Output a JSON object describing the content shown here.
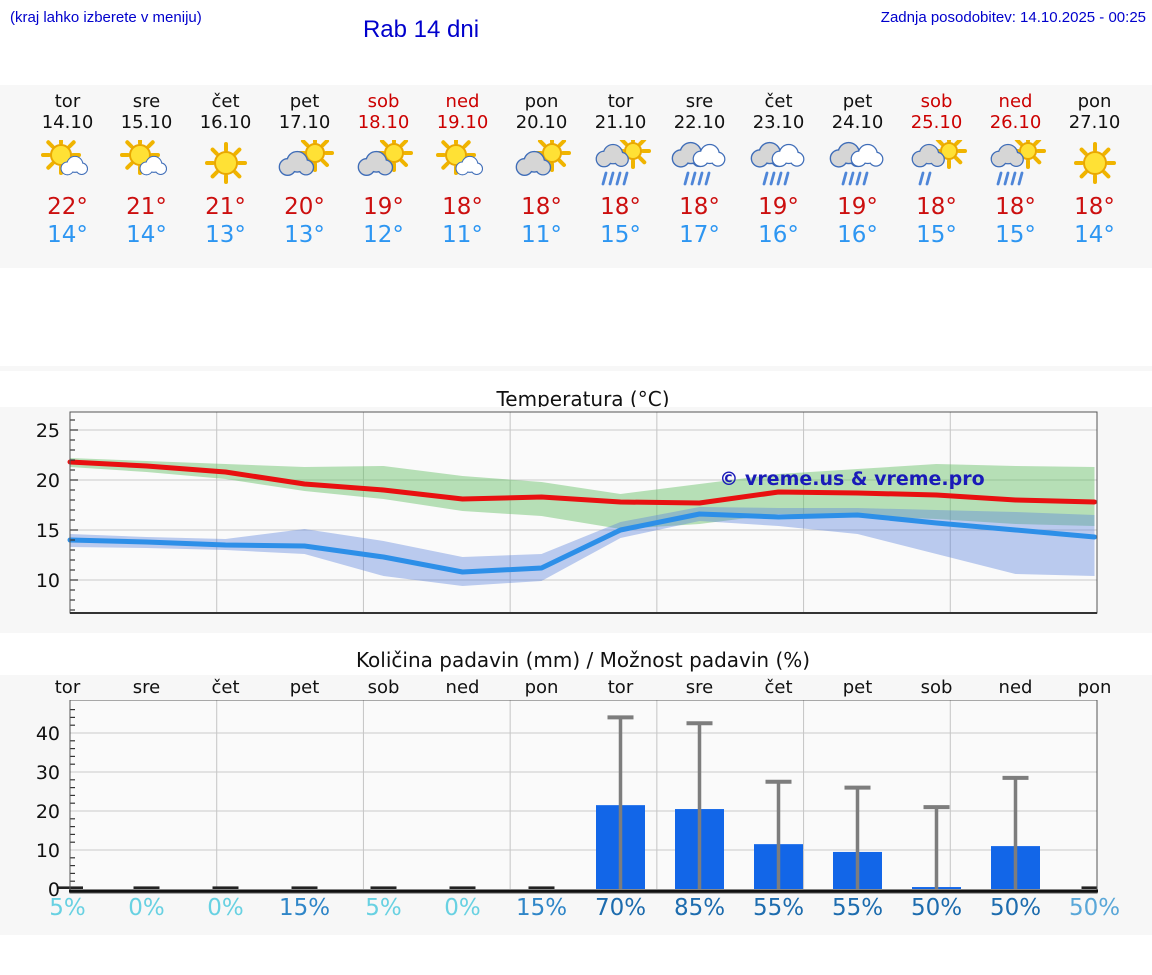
{
  "header": {
    "hint": "(kraj lahko izberete v meniju)",
    "title": "Rab 14 dni",
    "updated": "Zadnja posodobitev: 14.10.2025 - 00:25"
  },
  "watermark": "© vreme.us & vreme.pro",
  "colors": {
    "header_text": "#0000cc",
    "weekend_red": "#cc0000",
    "high_temp": "#cc0f0f",
    "low_temp": "#2d96f2",
    "max_line": "#e81010",
    "min_line": "#2d8fe8",
    "max_band": "rgba(100,190,100,0.45)",
    "min_band": "rgba(90,130,220,0.40)",
    "bar": "#1266e8",
    "whisker": "#7d7d7d",
    "band_bg": "#f7f7f7",
    "plot_bg": "#fafafa"
  },
  "forecast_days": [
    {
      "name": "tor",
      "date": "14.10",
      "weekend": false,
      "icon": "sun-cloud-white",
      "high": "22°",
      "low": "14°"
    },
    {
      "name": "sre",
      "date": "15.10",
      "weekend": false,
      "icon": "sun-cloud-white",
      "high": "21°",
      "low": "14°"
    },
    {
      "name": "čet",
      "date": "16.10",
      "weekend": false,
      "icon": "sun",
      "high": "21°",
      "low": "13°"
    },
    {
      "name": "pet",
      "date": "17.10",
      "weekend": false,
      "icon": "sun-cloud-gray",
      "high": "20°",
      "low": "13°"
    },
    {
      "name": "sob",
      "date": "18.10",
      "weekend": true,
      "icon": "sun-cloud-gray",
      "high": "19°",
      "low": "12°"
    },
    {
      "name": "ned",
      "date": "19.10",
      "weekend": true,
      "icon": "sun-cloud-white",
      "high": "18°",
      "low": "11°"
    },
    {
      "name": "pon",
      "date": "20.10",
      "weekend": false,
      "icon": "sun-cloud-gray",
      "high": "18°",
      "low": "11°"
    },
    {
      "name": "tor",
      "date": "21.10",
      "weekend": false,
      "icon": "sun-rain",
      "high": "18°",
      "low": "15°"
    },
    {
      "name": "sre",
      "date": "22.10",
      "weekend": false,
      "icon": "rain",
      "high": "18°",
      "low": "17°"
    },
    {
      "name": "čet",
      "date": "23.10",
      "weekend": false,
      "icon": "rain",
      "high": "19°",
      "low": "16°"
    },
    {
      "name": "pet",
      "date": "24.10",
      "weekend": false,
      "icon": "rain",
      "high": "19°",
      "low": "16°"
    },
    {
      "name": "sob",
      "date": "25.10",
      "weekend": true,
      "icon": "sun-drizzle",
      "high": "18°",
      "low": "15°"
    },
    {
      "name": "ned",
      "date": "26.10",
      "weekend": true,
      "icon": "sun-rain",
      "high": "18°",
      "low": "15°"
    },
    {
      "name": "pon",
      "date": "27.10",
      "weekend": false,
      "icon": "sun",
      "high": "18°",
      "low": "14°"
    }
  ],
  "chart_data": [
    {
      "type": "line",
      "title": "Temperatura (°C)",
      "x": [
        "14.10",
        "15.10",
        "16.10",
        "17.10",
        "18.10",
        "19.10",
        "20.10",
        "21.10",
        "22.10",
        "23.10",
        "24.10",
        "25.10",
        "26.10",
        "27.10"
      ],
      "ylim": [
        6.7,
        26.8
      ],
      "yticks": [
        10,
        15,
        20,
        25
      ],
      "grid": true,
      "series": [
        {
          "name": "max-temp",
          "values": [
            21.8,
            21.4,
            20.8,
            19.6,
            19.0,
            18.1,
            18.3,
            17.8,
            17.7,
            18.8,
            18.7,
            18.5,
            18.0,
            17.8
          ]
        },
        {
          "name": "min-temp",
          "values": [
            14.0,
            13.8,
            13.5,
            13.4,
            12.3,
            10.8,
            11.2,
            15.0,
            16.6,
            16.3,
            16.5,
            15.7,
            15.0,
            14.3
          ]
        }
      ],
      "bands": [
        {
          "name": "max-range",
          "upper": [
            22.2,
            21.9,
            21.6,
            21.3,
            21.4,
            20.4,
            19.8,
            18.6,
            19.6,
            20.6,
            21.1,
            21.6,
            21.4,
            21.3
          ],
          "lower": [
            21.3,
            20.8,
            20.1,
            18.9,
            18.1,
            16.9,
            16.4,
            15.1,
            15.6,
            16.6,
            16.4,
            16.1,
            15.6,
            15.4
          ]
        },
        {
          "name": "min-range",
          "upper": [
            14.6,
            14.3,
            14.1,
            15.1,
            13.9,
            12.3,
            12.6,
            15.8,
            17.3,
            17.2,
            17.2,
            17.0,
            16.8,
            16.5
          ],
          "lower": [
            13.3,
            13.2,
            13.0,
            12.6,
            10.4,
            9.4,
            9.9,
            14.2,
            15.9,
            15.4,
            14.6,
            12.6,
            10.6,
            10.4
          ]
        }
      ]
    },
    {
      "type": "bar",
      "title": "Količina padavin (mm) / Možnost padavin (%)",
      "categories": [
        "tor",
        "sre",
        "čet",
        "pet",
        "sob",
        "ned",
        "pon",
        "tor",
        "sre",
        "čet",
        "pet",
        "sob",
        "ned",
        "pon"
      ],
      "values": [
        0.1,
        0.1,
        0.1,
        0.15,
        0.1,
        0.1,
        0.15,
        21.5,
        20.5,
        11.5,
        9.5,
        0.5,
        11,
        0.3
      ],
      "whisker_max": [
        0,
        0,
        0,
        0,
        0,
        0,
        0,
        44,
        42.5,
        27.5,
        26,
        21,
        28.5,
        0
      ],
      "ylim": [
        0,
        48
      ],
      "yticks": [
        0,
        10,
        20,
        30,
        40
      ],
      "grid": true,
      "probabilities": {
        "labels": [
          "5%",
          "0%",
          "0%",
          "15%",
          "5%",
          "0%",
          "15%",
          "70%",
          "85%",
          "55%",
          "55%",
          "50%",
          "50%",
          "50%"
        ],
        "values": [
          5,
          0,
          0,
          15,
          5,
          0,
          15,
          70,
          85,
          55,
          55,
          50,
          50,
          50
        ],
        "colors": [
          "#68d1e2",
          "#68d1e2",
          "#68d1e2",
          "#2f86c8",
          "#68d1e2",
          "#68d1e2",
          "#2f86c8",
          "#1d6cae",
          "#1d6cae",
          "#1d6cae",
          "#1d6cae",
          "#1d6cae",
          "#1d6cae",
          "#5aa7d8"
        ]
      }
    }
  ]
}
